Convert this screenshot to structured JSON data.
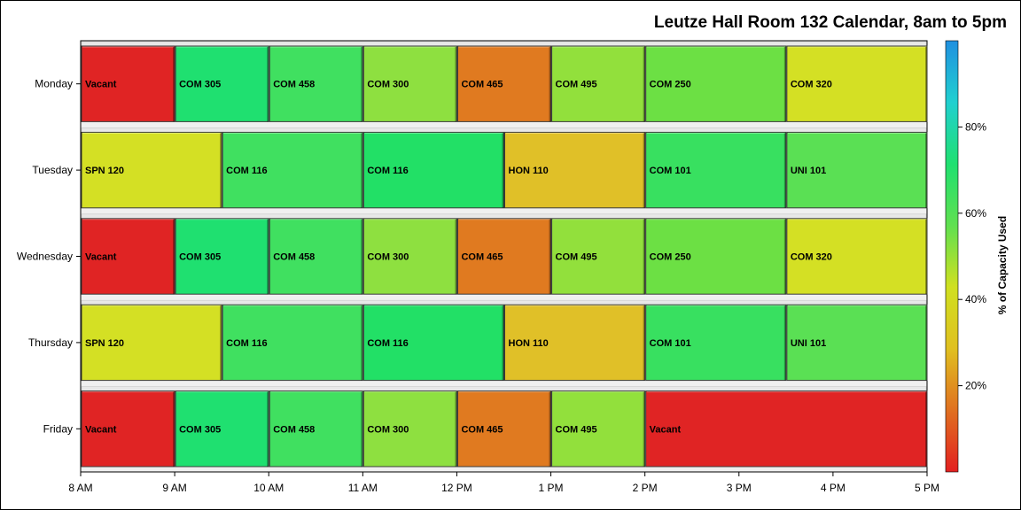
{
  "chart_data": {
    "type": "bar",
    "subtype": "horizontal-timeline",
    "title": "Leutze Hall Room 132 Calendar, 8am to 5pm",
    "xlabel": "",
    "ylabel": "",
    "x_range_hours": [
      8,
      17
    ],
    "x_ticks": [
      "8 AM",
      "9 AM",
      "10 AM",
      "11 AM",
      "12 PM",
      "1 PM",
      "2 PM",
      "3 PM",
      "4 PM",
      "5 PM"
    ],
    "categories": [
      "Monday",
      "Tuesday",
      "Wednesday",
      "Thursday",
      "Friday"
    ],
    "colorbar": {
      "label": "% of Capacity Used",
      "range": [
        0,
        100
      ],
      "ticks": [
        "20%",
        "40%",
        "60%",
        "80%"
      ],
      "tick_values": [
        20,
        40,
        60,
        80
      ],
      "colors": [
        "#e32020",
        "#e07020",
        "#e0c020",
        "#d0e020",
        "#60e050",
        "#20e070",
        "#20d0d0",
        "#2090e0"
      ]
    },
    "legend_position": "right",
    "grid": false,
    "days": [
      {
        "day": "Monday",
        "slots": [
          {
            "label": "Vacant",
            "start": 8,
            "end": 9,
            "color": "#e02424"
          },
          {
            "label": "COM 305",
            "start": 9,
            "end": 10,
            "color": "#1fe070"
          },
          {
            "label": "COM 458",
            "start": 10,
            "end": 11,
            "color": "#40e060"
          },
          {
            "label": "COM 300",
            "start": 11,
            "end": 12,
            "color": "#8ee040"
          },
          {
            "label": "COM 465",
            "start": 12,
            "end": 13,
            "color": "#e07a20"
          },
          {
            "label": "COM 495",
            "start": 13,
            "end": 14,
            "color": "#92e03c"
          },
          {
            "label": "COM 250",
            "start": 14,
            "end": 15.5,
            "color": "#6ce044"
          },
          {
            "label": "COM 320",
            "start": 15.5,
            "end": 17,
            "color": "#d4e024"
          }
        ]
      },
      {
        "day": "Tuesday",
        "slots": [
          {
            "label": "SPN 120",
            "start": 8,
            "end": 9.5,
            "color": "#d4e024"
          },
          {
            "label": "COM 116",
            "start": 9.5,
            "end": 11,
            "color": "#40e060"
          },
          {
            "label": "COM 116",
            "start": 11,
            "end": 12.5,
            "color": "#22e066"
          },
          {
            "label": "HON 110",
            "start": 12.5,
            "end": 14,
            "color": "#e0c028"
          },
          {
            "label": "COM 101",
            "start": 14,
            "end": 15.5,
            "color": "#38e060"
          },
          {
            "label": "UNI 101",
            "start": 15.5,
            "end": 17,
            "color": "#5ae054"
          }
        ]
      },
      {
        "day": "Wednesday",
        "slots": [
          {
            "label": "Vacant",
            "start": 8,
            "end": 9,
            "color": "#e02424"
          },
          {
            "label": "COM 305",
            "start": 9,
            "end": 10,
            "color": "#1fe070"
          },
          {
            "label": "COM 458",
            "start": 10,
            "end": 11,
            "color": "#40e060"
          },
          {
            "label": "COM 300",
            "start": 11,
            "end": 12,
            "color": "#8ee040"
          },
          {
            "label": "COM 465",
            "start": 12,
            "end": 13,
            "color": "#e07a20"
          },
          {
            "label": "COM 495",
            "start": 13,
            "end": 14,
            "color": "#92e03c"
          },
          {
            "label": "COM 250",
            "start": 14,
            "end": 15.5,
            "color": "#6ce044"
          },
          {
            "label": "COM 320",
            "start": 15.5,
            "end": 17,
            "color": "#d4e024"
          }
        ]
      },
      {
        "day": "Thursday",
        "slots": [
          {
            "label": "SPN 120",
            "start": 8,
            "end": 9.5,
            "color": "#d4e024"
          },
          {
            "label": "COM 116",
            "start": 9.5,
            "end": 11,
            "color": "#40e060"
          },
          {
            "label": "COM 116",
            "start": 11,
            "end": 12.5,
            "color": "#22e066"
          },
          {
            "label": "HON 110",
            "start": 12.5,
            "end": 14,
            "color": "#e0c028"
          },
          {
            "label": "COM 101",
            "start": 14,
            "end": 15.5,
            "color": "#38e060"
          },
          {
            "label": "UNI 101",
            "start": 15.5,
            "end": 17,
            "color": "#5ae054"
          }
        ]
      },
      {
        "day": "Friday",
        "slots": [
          {
            "label": "Vacant",
            "start": 8,
            "end": 9,
            "color": "#e02424"
          },
          {
            "label": "COM 305",
            "start": 9,
            "end": 10,
            "color": "#1fe070"
          },
          {
            "label": "COM 458",
            "start": 10,
            "end": 11,
            "color": "#40e060"
          },
          {
            "label": "COM 300",
            "start": 11,
            "end": 12,
            "color": "#8ee040"
          },
          {
            "label": "COM 465",
            "start": 12,
            "end": 13,
            "color": "#e07a20"
          },
          {
            "label": "COM 495",
            "start": 13,
            "end": 14,
            "color": "#92e03c"
          },
          {
            "label": "Vacant",
            "start": 14,
            "end": 17,
            "color": "#e02424"
          }
        ]
      }
    ]
  }
}
